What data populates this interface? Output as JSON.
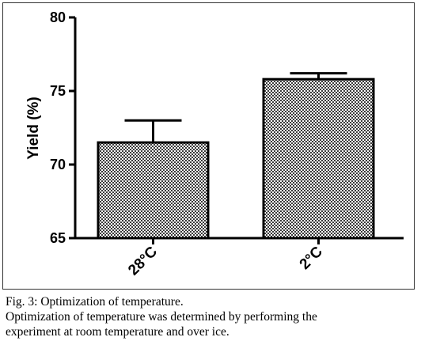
{
  "chart_data": {
    "type": "bar",
    "categories": [
      "28°C",
      "2°C"
    ],
    "values": [
      71.5,
      75.8
    ],
    "error_upper": [
      73.0,
      76.2
    ],
    "title": "",
    "xlabel": "",
    "ylabel": "Yield (%)",
    "ylim": [
      65,
      80
    ],
    "yticks": [
      "65",
      "70",
      "75",
      "80"
    ],
    "grid": false,
    "legend": "none",
    "bar_fill": "#b0b0b0",
    "bar_stroke": "#000000"
  },
  "caption": {
    "title": "Fig. 3: Optimization of temperature.",
    "line1": "Optimization of temperature was determined by performing the",
    "line2": "experiment at room temperature and over ice."
  }
}
